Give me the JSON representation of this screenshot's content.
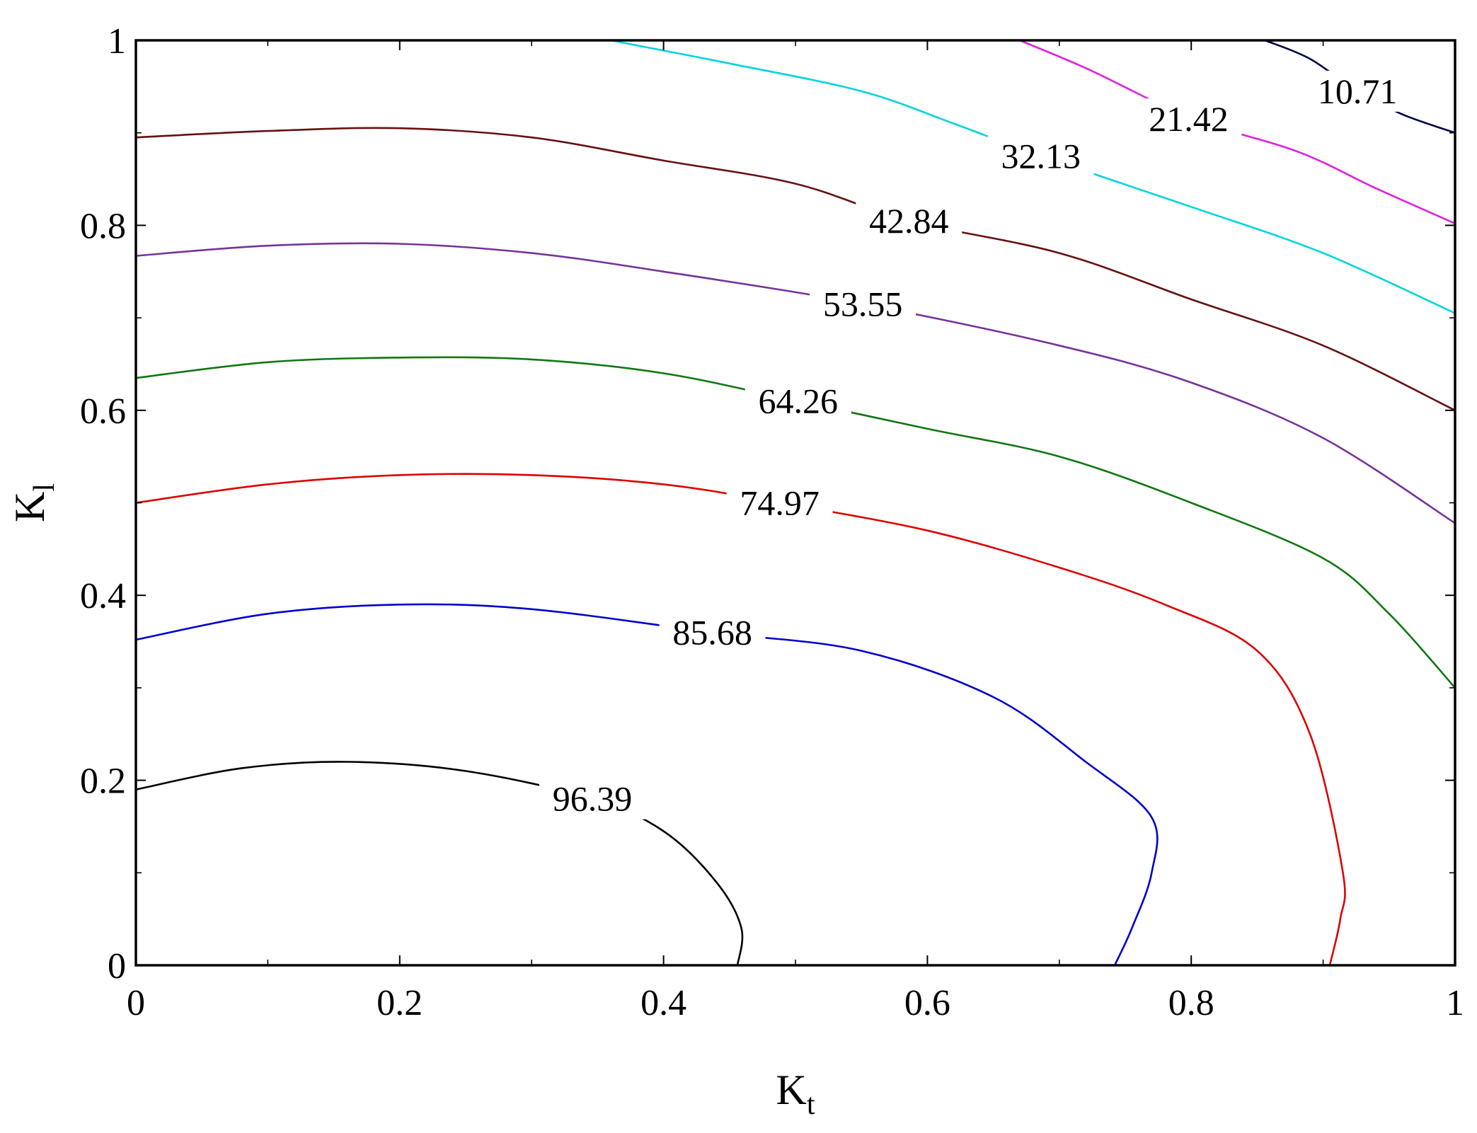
{
  "chart_data": {
    "type": "contour",
    "title": "",
    "xlabel": {
      "main": "K",
      "sub": "t"
    },
    "ylabel": {
      "main": "K",
      "sub": "l"
    },
    "xlim": [
      0,
      1
    ],
    "ylim": [
      0,
      1
    ],
    "x_ticks": [
      {
        "value": 0,
        "label": "0"
      },
      {
        "value": 0.2,
        "label": "0.2"
      },
      {
        "value": 0.4,
        "label": "0.4"
      },
      {
        "value": 0.6,
        "label": "0.6"
      },
      {
        "value": 0.8,
        "label": "0.8"
      },
      {
        "value": 1,
        "label": "1"
      }
    ],
    "y_ticks": [
      {
        "value": 0,
        "label": "0"
      },
      {
        "value": 0.2,
        "label": "0.2"
      },
      {
        "value": 0.4,
        "label": "0.4"
      },
      {
        "value": 0.6,
        "label": "0.6"
      },
      {
        "value": 0.8,
        "label": "0.8"
      },
      {
        "value": 1,
        "label": "1"
      }
    ],
    "x_minor_ticks": [
      0.1,
      0.3,
      0.5,
      0.7,
      0.9
    ],
    "y_minor_ticks": [
      0.1,
      0.3,
      0.5,
      0.7,
      0.9
    ],
    "grid": false,
    "contours": [
      {
        "level": "96.39",
        "color": "#000000",
        "label_at": [
          0.346,
          0.18
        ],
        "points": [
          [
            0,
            0.19
          ],
          [
            0.08,
            0.213
          ],
          [
            0.16,
            0.22
          ],
          [
            0.25,
            0.21
          ],
          [
            0.346,
            0.18
          ],
          [
            0.4,
            0.145
          ],
          [
            0.44,
            0.09
          ],
          [
            0.459,
            0.04
          ],
          [
            0.456,
            0
          ]
        ]
      },
      {
        "level": "85.68",
        "color": "#0000cc",
        "label_at": [
          0.437,
          0.36
        ],
        "points": [
          [
            0,
            0.352
          ],
          [
            0.1,
            0.38
          ],
          [
            0.2,
            0.39
          ],
          [
            0.3,
            0.385
          ],
          [
            0.437,
            0.36
          ],
          [
            0.55,
            0.34
          ],
          [
            0.65,
            0.29
          ],
          [
            0.72,
            0.22
          ],
          [
            0.77,
            0.16
          ],
          [
            0.77,
            0.1
          ],
          [
            0.755,
            0.04
          ],
          [
            0.742,
            0
          ]
        ]
      },
      {
        "level": "74.97",
        "color": "#dd0000",
        "label_at": [
          0.488,
          0.5
        ],
        "points": [
          [
            0,
            0.5
          ],
          [
            0.1,
            0.52
          ],
          [
            0.2,
            0.53
          ],
          [
            0.3,
            0.53
          ],
          [
            0.4,
            0.52
          ],
          [
            0.488,
            0.5
          ],
          [
            0.6,
            0.47
          ],
          [
            0.7,
            0.43
          ],
          [
            0.78,
            0.39
          ],
          [
            0.85,
            0.34
          ],
          [
            0.89,
            0.25
          ],
          [
            0.915,
            0.1
          ],
          [
            0.913,
            0.05
          ],
          [
            0.905,
            0
          ]
        ]
      },
      {
        "level": "64.26",
        "color": "#117711",
        "label_at": [
          0.502,
          0.61
        ],
        "points": [
          [
            0,
            0.635
          ],
          [
            0.1,
            0.652
          ],
          [
            0.2,
            0.657
          ],
          [
            0.3,
            0.655
          ],
          [
            0.4,
            0.64
          ],
          [
            0.502,
            0.61
          ],
          [
            0.6,
            0.58
          ],
          [
            0.7,
            0.55
          ],
          [
            0.8,
            0.5
          ],
          [
            0.9,
            0.44
          ],
          [
            0.95,
            0.38
          ],
          [
            1,
            0.3
          ]
        ]
      },
      {
        "level": "53.55",
        "color": "#773399",
        "label_at": [
          0.551,
          0.715
        ],
        "points": [
          [
            0,
            0.767
          ],
          [
            0.1,
            0.778
          ],
          [
            0.2,
            0.78
          ],
          [
            0.3,
            0.77
          ],
          [
            0.4,
            0.75
          ],
          [
            0.551,
            0.715
          ],
          [
            0.7,
            0.67
          ],
          [
            0.8,
            0.63
          ],
          [
            0.9,
            0.57
          ],
          [
            1,
            0.478
          ]
        ]
      },
      {
        "level": "42.84",
        "color": "#661111",
        "label_at": [
          0.586,
          0.805
        ],
        "points": [
          [
            0,
            0.895
          ],
          [
            0.1,
            0.902
          ],
          [
            0.2,
            0.905
          ],
          [
            0.3,
            0.895
          ],
          [
            0.4,
            0.87
          ],
          [
            0.5,
            0.845
          ],
          [
            0.586,
            0.805
          ],
          [
            0.7,
            0.77
          ],
          [
            0.8,
            0.72
          ],
          [
            0.9,
            0.67
          ],
          [
            1,
            0.6
          ]
        ]
      },
      {
        "level": "32.13",
        "color": "#00d4dd",
        "label_at": [
          0.686,
          0.875
        ],
        "points": [
          [
            0.36,
            1
          ],
          [
            0.45,
            0.975
          ],
          [
            0.55,
            0.945
          ],
          [
            0.62,
            0.91
          ],
          [
            0.686,
            0.875
          ],
          [
            0.8,
            0.82
          ],
          [
            0.9,
            0.77
          ],
          [
            1,
            0.705
          ]
        ]
      },
      {
        "level": "21.42",
        "color": "#dd22dd",
        "label_at": [
          0.798,
          0.915
        ],
        "points": [
          [
            0.67,
            1
          ],
          [
            0.72,
            0.97
          ],
          [
            0.77,
            0.935
          ],
          [
            0.798,
            0.915
          ],
          [
            0.88,
            0.88
          ],
          [
            0.94,
            0.84
          ],
          [
            1,
            0.802
          ]
        ]
      },
      {
        "level": "10.71",
        "color": "#000044",
        "label_at": [
          0.926,
          0.945
        ],
        "points": [
          [
            0.856,
            1
          ],
          [
            0.89,
            0.98
          ],
          [
            0.926,
            0.945
          ],
          [
            0.96,
            0.92
          ],
          [
            1,
            0.9
          ]
        ]
      }
    ]
  }
}
